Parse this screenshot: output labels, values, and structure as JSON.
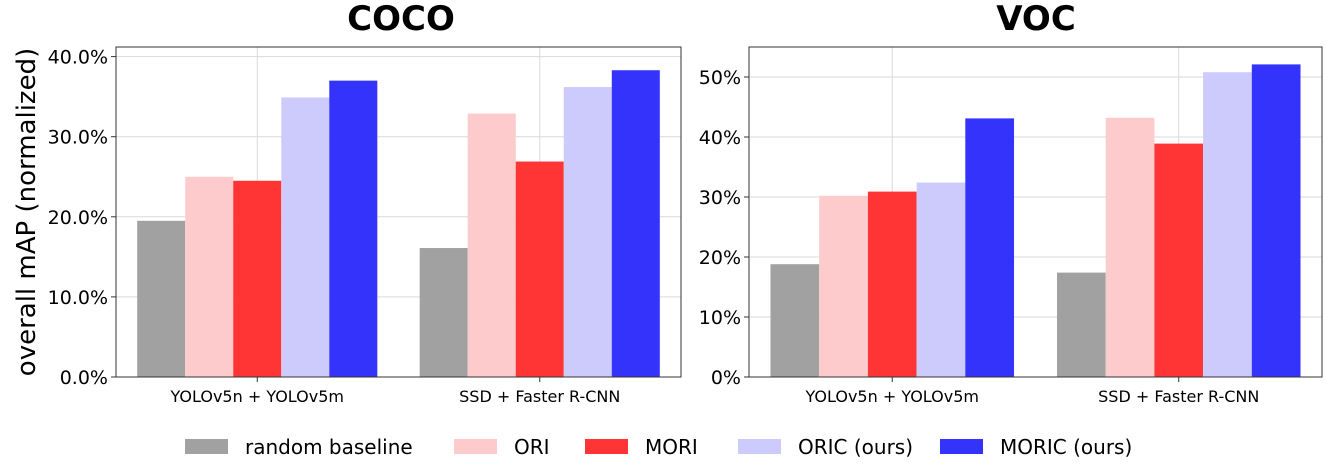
{
  "ylabel": "overall mAP (normalized)",
  "legend": [
    {
      "name": "random baseline",
      "color": "#a1a1a1"
    },
    {
      "name": "ORI",
      "color": "#fdcbcb"
    },
    {
      "name": "MORI",
      "color": "#ff3434"
    },
    {
      "name": "ORIC (ours)",
      "color": "#cccbfb"
    },
    {
      "name": "MORIC (ours)",
      "color": "#3333fb"
    }
  ],
  "chart_data": [
    {
      "type": "bar",
      "title": "COCO",
      "ylabel": "overall mAP (normalized)",
      "categories": [
        "YOLOv5n + YOLOv5m",
        "SSD + Faster R-CNN"
      ],
      "ylim": [
        0,
        41.2
      ],
      "yticks": [
        0,
        10,
        20,
        30,
        40
      ],
      "ytick_labels": [
        "0.0%",
        "10.0%",
        "20.0%",
        "30.0%",
        "40.0%"
      ],
      "grid": true,
      "series": [
        {
          "name": "random baseline",
          "values": [
            19.5,
            16.1
          ]
        },
        {
          "name": "ORI",
          "values": [
            25.0,
            32.9
          ]
        },
        {
          "name": "MORI",
          "values": [
            24.5,
            26.9
          ]
        },
        {
          "name": "ORIC (ours)",
          "values": [
            34.9,
            36.2
          ]
        },
        {
          "name": "MORIC (ours)",
          "values": [
            37.0,
            38.3
          ]
        }
      ]
    },
    {
      "type": "bar",
      "title": "VOC",
      "categories": [
        "YOLOv5n + YOLOv5m",
        "SSD + Faster R-CNN"
      ],
      "ylim": [
        0,
        55
      ],
      "yticks": [
        0,
        10,
        20,
        30,
        40,
        50
      ],
      "ytick_labels": [
        "0%",
        "10%",
        "20%",
        "30%",
        "40%",
        "50%"
      ],
      "grid": true,
      "series": [
        {
          "name": "random baseline",
          "values": [
            18.8,
            17.4
          ]
        },
        {
          "name": "ORI",
          "values": [
            30.2,
            43.2
          ]
        },
        {
          "name": "MORI",
          "values": [
            30.9,
            38.9
          ]
        },
        {
          "name": "ORIC (ours)",
          "values": [
            32.4,
            50.8
          ]
        },
        {
          "name": "MORIC (ours)",
          "values": [
            43.1,
            52.1
          ]
        }
      ]
    }
  ]
}
